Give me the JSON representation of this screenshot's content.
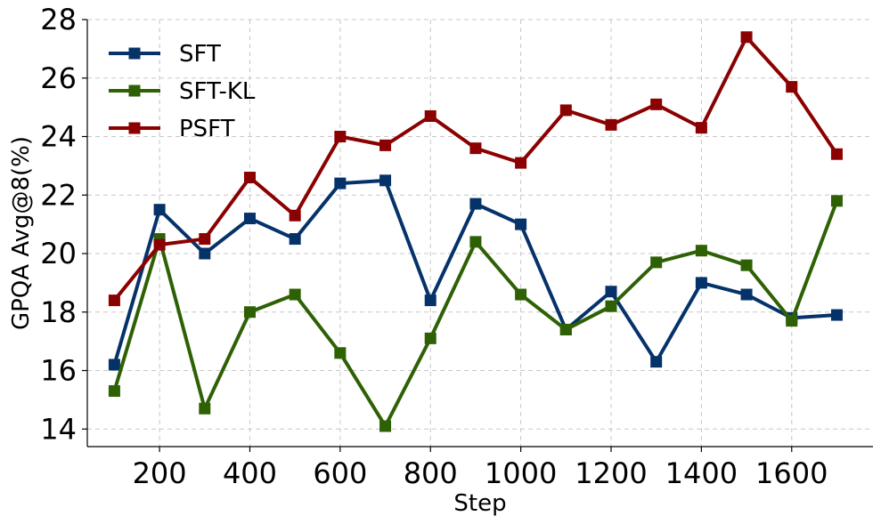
{
  "chart_data": {
    "type": "line",
    "title": "",
    "xlabel": "Step",
    "ylabel": "GPQA Avg@8(%)",
    "xlim": [
      40,
      1780
    ],
    "ylim": [
      13.4,
      28
    ],
    "xticks": [
      200,
      400,
      600,
      800,
      1000,
      1200,
      1400,
      1600
    ],
    "yticks": [
      14,
      16,
      18,
      20,
      22,
      24,
      26,
      28
    ],
    "grid": true,
    "legend_position": "top-left",
    "x": [
      100,
      200,
      300,
      400,
      500,
      600,
      700,
      800,
      900,
      1000,
      1100,
      1200,
      1300,
      1400,
      1500,
      1600,
      1700
    ],
    "series": [
      {
        "name": "SFT",
        "color": "#06326a",
        "marker": "square",
        "values": [
          16.2,
          21.5,
          20.0,
          21.2,
          20.5,
          22.4,
          22.5,
          18.4,
          21.7,
          21.0,
          17.4,
          18.7,
          16.3,
          19.0,
          18.6,
          17.8,
          17.9
        ]
      },
      {
        "name": "SFT-KL",
        "color": "#2e6004",
        "marker": "square",
        "values": [
          15.3,
          20.5,
          14.7,
          18.0,
          18.6,
          16.6,
          14.1,
          17.1,
          20.4,
          18.6,
          17.4,
          18.2,
          19.7,
          20.1,
          19.6,
          17.7,
          21.8
        ]
      },
      {
        "name": "PSFT",
        "color": "#8b0000",
        "marker": "square",
        "values": [
          18.4,
          20.3,
          20.5,
          22.6,
          21.3,
          24.0,
          23.7,
          24.7,
          23.6,
          23.1,
          24.9,
          24.4,
          25.1,
          24.3,
          27.4,
          25.7,
          23.4
        ]
      }
    ]
  }
}
